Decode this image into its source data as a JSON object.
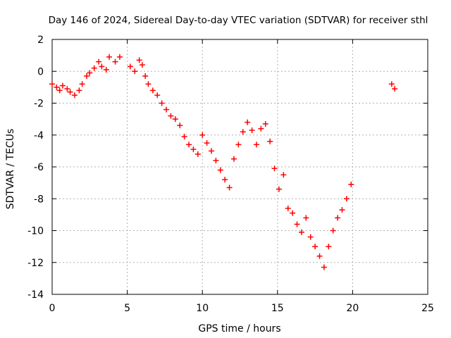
{
  "chart_data": {
    "type": "scatter",
    "title": "Day 146 of 2024, Sidereal Day-to-day VTEC variation (SDTVAR) for receiver sthl",
    "xlabel": "GPS time / hours",
    "ylabel": "SDTVAR / TECUs",
    "xlim": [
      0,
      25
    ],
    "ylim": [
      -14,
      2
    ],
    "xticks": [
      0,
      5,
      10,
      15,
      20,
      25
    ],
    "yticks": [
      2,
      0,
      -2,
      -4,
      -6,
      -8,
      -10,
      -12,
      -14
    ],
    "grid": true,
    "marker": "+",
    "series": [
      {
        "name": "SDTVAR",
        "color": "#ff0000",
        "x": [
          0.0,
          0.3,
          0.5,
          0.7,
          1.0,
          1.2,
          1.5,
          1.8,
          2.0,
          2.3,
          2.5,
          2.8,
          3.1,
          3.3,
          3.6,
          3.8,
          4.2,
          4.5,
          5.2,
          5.5,
          5.8,
          6.0,
          6.2,
          6.4,
          6.7,
          7.0,
          7.3,
          7.6,
          7.9,
          8.2,
          8.5,
          8.8,
          9.1,
          9.4,
          9.7,
          10.0,
          10.3,
          10.6,
          10.9,
          11.2,
          11.5,
          11.8,
          12.1,
          12.4,
          12.7,
          13.0,
          13.3,
          13.6,
          13.9,
          14.2,
          14.5,
          14.8,
          15.1,
          15.4,
          15.7,
          16.0,
          16.3,
          16.6,
          16.9,
          17.2,
          17.5,
          17.8,
          18.1,
          18.4,
          18.7,
          19.0,
          19.3,
          19.6,
          19.9,
          22.6,
          22.8
        ],
        "y": [
          -0.8,
          -1.0,
          -1.2,
          -0.9,
          -1.1,
          -1.3,
          -1.5,
          -1.2,
          -0.8,
          -0.3,
          -0.1,
          0.2,
          0.6,
          0.3,
          0.1,
          0.9,
          0.6,
          0.9,
          0.3,
          0.0,
          0.7,
          0.4,
          -0.3,
          -0.8,
          -1.2,
          -1.5,
          -2.0,
          -2.4,
          -2.8,
          -3.0,
          -3.4,
          -4.1,
          -4.6,
          -4.9,
          -5.2,
          -4.0,
          -4.5,
          -5.0,
          -5.6,
          -6.2,
          -6.8,
          -7.3,
          -5.5,
          -4.6,
          -3.8,
          -3.2,
          -3.7,
          -4.6,
          -3.6,
          -3.3,
          -4.4,
          -6.1,
          -7.4,
          -6.5,
          -8.6,
          -8.9,
          -9.6,
          -10.1,
          -9.2,
          -10.4,
          -11.0,
          -11.6,
          -12.3,
          -11.0,
          -10.0,
          -9.2,
          -8.7,
          -8.0,
          -7.1,
          -0.8,
          -1.1
        ]
      }
    ]
  }
}
